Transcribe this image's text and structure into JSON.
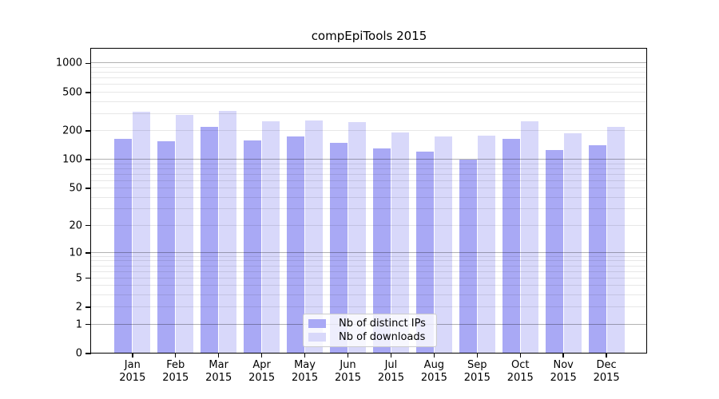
{
  "title": "compEpiTools 2015",
  "legend": {
    "entries": [
      {
        "label": "Nb of distinct IPs",
        "color": "#a9a9f5"
      },
      {
        "label": "Nb of downloads",
        "color": "#d8d8fa"
      }
    ]
  },
  "chart_data": {
    "type": "bar",
    "title": "compEpiTools 2015",
    "scale": "log1p",
    "xlabel": "",
    "ylabel": "",
    "categories": [
      "Jan",
      "Feb",
      "Mar",
      "Apr",
      "May",
      "Jun",
      "Jul",
      "Aug",
      "Sep",
      "Oct",
      "Nov",
      "Dec"
    ],
    "category_year": "2015",
    "series": [
      {
        "name": "Nb of distinct IPs",
        "color": "#a9a9f5",
        "values": [
          165,
          156,
          220,
          160,
          176,
          150,
          130,
          122,
          100,
          165,
          125,
          142
        ]
      },
      {
        "name": "Nb of downloads",
        "color": "#d8d8fa",
        "values": [
          315,
          292,
          322,
          250,
          256,
          248,
          193,
          173,
          179,
          250,
          188,
          220
        ]
      }
    ],
    "y_ticks": [
      0,
      1,
      2,
      5,
      10,
      20,
      50,
      100,
      200,
      500,
      1000
    ],
    "y_major_gridlines": [
      1,
      10,
      100,
      1000
    ],
    "y_minor_gridlines": [
      2,
      3,
      4,
      5,
      6,
      7,
      8,
      9,
      20,
      30,
      40,
      50,
      60,
      70,
      80,
      90,
      200,
      300,
      400,
      500,
      600,
      700,
      800,
      900
    ],
    "ylim": [
      0,
      1418
    ],
    "grid": true,
    "legend_position": "inside-bottom-center",
    "colors": {
      "major_grid": "rgba(0,0,0,0.30)",
      "minor_grid": "rgba(0,0,0,0.095)",
      "spine": "#000000",
      "text": "#000000",
      "background": "#ffffff"
    }
  }
}
